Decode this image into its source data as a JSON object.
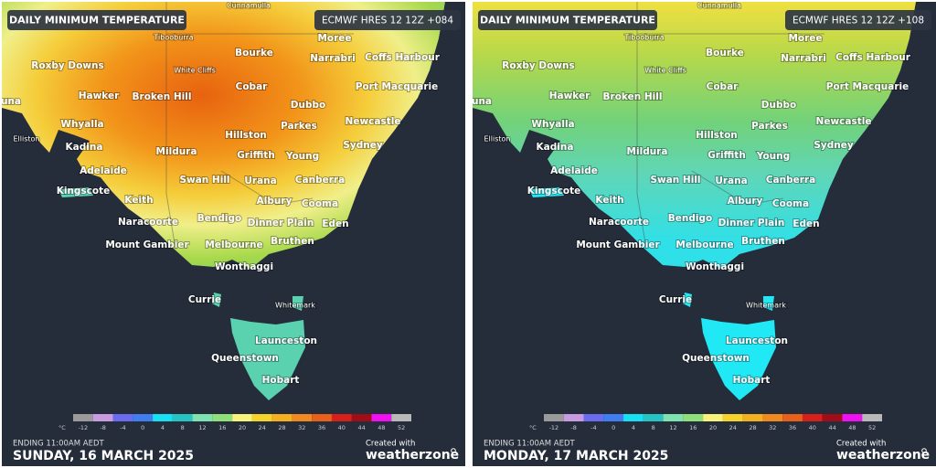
{
  "panels": [
    {
      "title": "DAILY MINIMUM TEMPERATURE",
      "model": "ECMWF HRES 12 12Z +084",
      "places": [
        "Cunnamulla",
        "Tibooburra",
        "Moree",
        "Roxby Downs",
        "White Cliffs",
        "Bourke",
        "Narrabri",
        "Coffs Harbour",
        "Cobar",
        "Port Macquarie",
        "Hawker",
        "Broken Hill",
        "Dubbo",
        "Whyalla",
        "Parkes",
        "Newcastle",
        "Elliston",
        "Hillston",
        "Kadina",
        "Mildura",
        "Griffith",
        "Young",
        "Sydney",
        "Adelaide",
        "Swan Hill",
        "Urana",
        "Canberra",
        "Kingscote",
        "Keith",
        "Albury",
        "Cooma",
        "Naracoorte",
        "Bendigo",
        "Dinner Plain",
        "Eden",
        "Mount Gambier",
        "Melbourne",
        "Bruthen",
        "Wonthaggi",
        "Currie",
        "Whitemark",
        "Launceston",
        "Queenstown",
        "Hobart",
        "una"
      ],
      "legend": {
        "unit": "°C",
        "ticks": [
          -12,
          -8,
          -4,
          0,
          4,
          8,
          12,
          16,
          20,
          24,
          28,
          32,
          36,
          40,
          44,
          48,
          52
        ],
        "colors": [
          "#9a9a9a",
          "#c89be0",
          "#6a6cf0",
          "#3f7df0",
          "#17e0f2",
          "#27c4c4",
          "#7ee3b0",
          "#8fe07a",
          "#f6f27a",
          "#f5d32a",
          "#f5b020",
          "#f08a20",
          "#e8601a",
          "#d8201a",
          "#a00c18",
          "#f010f0",
          "#b8b8b8"
        ]
      },
      "ending": "ENDING 11:00AM AEDT",
      "date": "SUNDAY, 16 MARCH 2025",
      "credit": "Created with",
      "brand": "weatherzone"
    },
    {
      "title": "DAILY MINIMUM TEMPERATURE",
      "model": "ECMWF HRES 12 12Z +108",
      "places": [
        "Cunnamulla",
        "Tibooburra",
        "Moree",
        "Roxby Downs",
        "White Cliffs",
        "Bourke",
        "Narrabri",
        "Coffs Harbour",
        "Cobar",
        "Port Macquarie",
        "Hawker",
        "Broken Hill",
        "Dubbo",
        "Whyalla",
        "Parkes",
        "Newcastle",
        "Elliston",
        "Hillston",
        "Kadina",
        "Mildura",
        "Griffith",
        "Young",
        "Sydney",
        "Adelaide",
        "Swan Hill",
        "Urana",
        "Canberra",
        "Kingscote",
        "Keith",
        "Albury",
        "Cooma",
        "Naracoorte",
        "Bendigo",
        "Dinner Plain",
        "Eden",
        "Mount Gambier",
        "Melbourne",
        "Bruthen",
        "Wonthaggi",
        "Currie",
        "Whitemark",
        "Launceston",
        "Queenstown",
        "Hobart",
        "una"
      ],
      "legend": {
        "unit": "°C",
        "ticks": [
          -12,
          -8,
          -4,
          0,
          4,
          8,
          12,
          16,
          20,
          24,
          28,
          32,
          36,
          40,
          44,
          48,
          52
        ],
        "colors": [
          "#9a9a9a",
          "#c89be0",
          "#6a6cf0",
          "#3f7df0",
          "#17e0f2",
          "#27c4c4",
          "#7ee3b0",
          "#8fe07a",
          "#f6f27a",
          "#f5d32a",
          "#f5b020",
          "#f08a20",
          "#e8601a",
          "#d8201a",
          "#a00c18",
          "#f010f0",
          "#b8b8b8"
        ]
      },
      "ending": "ENDING 11:00AM AEDT",
      "date": "MONDAY, 17 MARCH 2025",
      "credit": "Created with",
      "brand": "weatherzone"
    }
  ]
}
